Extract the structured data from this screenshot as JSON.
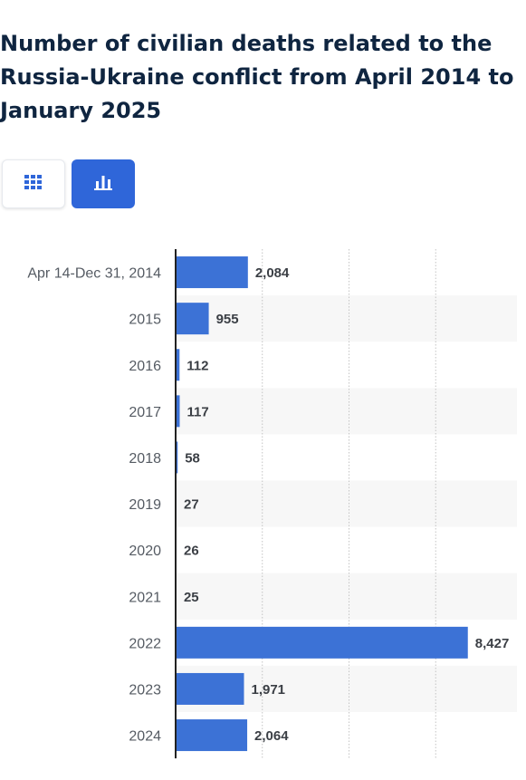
{
  "title": "Number of civilian deaths related to the Russia-Ukraine conflict from April 2014 to January 2025",
  "view_toggle": {
    "table_icon": "table-grid-icon",
    "chart_icon": "bar-chart-icon",
    "active": "chart",
    "active_color": "#2f66d9"
  },
  "chart_data": {
    "type": "bar",
    "orientation": "horizontal",
    "categories": [
      "Apr 14-Dec 31, 2014",
      "2015",
      "2016",
      "2017",
      "2018",
      "2019",
      "2020",
      "2021",
      "2022",
      "2023",
      "2024"
    ],
    "values": [
      2084,
      955,
      112,
      117,
      58,
      27,
      26,
      25,
      8427,
      1971,
      2064
    ],
    "value_labels": [
      "2,084",
      "955",
      "112",
      "117",
      "58",
      "27",
      "26",
      "25",
      "8,427",
      "1,971",
      "2,064"
    ],
    "xlim": [
      0,
      10000
    ],
    "grid": true,
    "bar_color": "#3c72d6",
    "title": "",
    "xlabel": "",
    "ylabel": ""
  }
}
